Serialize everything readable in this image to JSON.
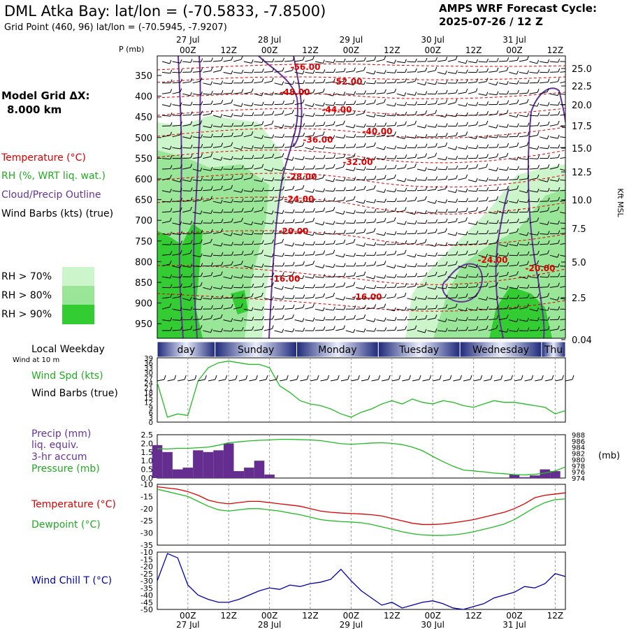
{
  "header": {
    "title": "DML Atka Bay:  lat/lon = (-70.5833, -7.8500)",
    "subtitle": "Grid Point (460, 96) lat/lon = (-70.5945, -7.9207)",
    "cycle_line1": "AMPS WRF Forecast Cycle:",
    "cycle_line2": "2025-07-26 / 12  Z"
  },
  "model_grid": {
    "label": "Model Grid ΔX:",
    "value": "8.000 km"
  },
  "legend": {
    "temperature": "Temperature (°C)",
    "rh": "RH (%, WRT liq. wat.)",
    "cloud": "Cloud/Precip Outline",
    "wind": "Wind Barbs (kts) (true)",
    "rh70": "RH > 70%",
    "rh80": "RH > 80%",
    "rh90": "RH > 90%",
    "colors": {
      "rh70": "#ccf5cc",
      "rh80": "#99e699",
      "rh90": "#33cc33",
      "temp": "#dd0000",
      "cloud": "#663399"
    }
  },
  "time_axis": {
    "top_dates": [
      "27 Jul",
      "28 Jul",
      "29 Jul",
      "30 Jul",
      "31 Jul"
    ],
    "hours": [
      "00Z",
      "12Z",
      "00Z",
      "12Z",
      "00Z",
      "12Z",
      "00Z",
      "12Z",
      "00Z",
      "12Z"
    ],
    "weekdays": [
      "day",
      "Sunday",
      "Monday",
      "Tuesday",
      "Wednesday",
      "Thu"
    ],
    "weekday_label": "Local Weekday"
  },
  "upper_axes": {
    "p_label": "P (mb)",
    "pressure_ticks": [
      "350",
      "400",
      "450",
      "500",
      "550",
      "600",
      "650",
      "700",
      "750",
      "800",
      "850",
      "900",
      "950"
    ],
    "height_ticks": [
      "25.0",
      "22.5",
      "20.0",
      "17.5",
      "15.0",
      "12.5",
      "10.0",
      "7.5",
      "5.0",
      "2.5",
      "0.04"
    ],
    "height_label": "Kft MSL",
    "isotherm_labels": [
      "-56.00",
      "-52.00",
      "-48.00",
      "-44.00",
      "-40.00",
      "-36.00",
      "-32.00",
      "-28.00",
      "-24.00",
      "-20.00",
      "-16.00",
      "-16.00",
      "-24.00",
      "-20.00"
    ]
  },
  "panels": {
    "wind": {
      "label_top": "Wind at 10 m",
      "label_spd": "Wind Spd (kts)",
      "label_barbs": "Wind Barbs (true)",
      "yticks": [
        "39",
        "36",
        "33",
        "30",
        "27",
        "24",
        "21",
        "18",
        "15",
        "12",
        "9",
        "6",
        "3",
        "0"
      ]
    },
    "precip": {
      "label1": "Precip (mm)",
      "label2": "liq. equiv.",
      "label3": "3-hr accum",
      "label4": "Pressure (mb)",
      "yticks": [
        "2.5",
        "2.0",
        "1.5",
        "1.0",
        "0.5",
        "0.0"
      ],
      "yticks_right": [
        "988",
        "986",
        "984",
        "982",
        "980",
        "978",
        "976",
        "974"
      ],
      "unit_right": "(mb)"
    },
    "temp": {
      "label_t": "Temperature (°C)",
      "label_td": "Dewpoint (°C)",
      "yticks": [
        "-10",
        "-15",
        "-20",
        "-25",
        "-30",
        "-35"
      ]
    },
    "chill": {
      "label": "Wind Chill T (°C)",
      "yticks": [
        "-10",
        "-15",
        "-20",
        "-25",
        "-30",
        "-35",
        "-40",
        "-45",
        "-50"
      ]
    }
  },
  "chart_data": [
    {
      "type": "line",
      "title": "Wind Spd (kts)",
      "x_hours": [
        0,
        3,
        6,
        9,
        12,
        15,
        18,
        21,
        24,
        27,
        30,
        33,
        36,
        39,
        42,
        45,
        48,
        51,
        54,
        57,
        60,
        63,
        66,
        69,
        72,
        75,
        78,
        81,
        84,
        87,
        90,
        93,
        96,
        99,
        102,
        105,
        108,
        111,
        114,
        117,
        120
      ],
      "series": [
        {
          "name": "Wind Spd (kts)",
          "color": "#22bb22",
          "values": [
            24,
            3,
            5,
            4,
            25,
            33,
            36,
            37,
            36,
            35,
            35,
            33,
            22,
            18,
            13,
            11,
            10,
            8,
            5,
            3,
            6,
            8,
            11,
            13,
            11,
            14,
            12,
            11,
            13,
            12,
            10,
            9,
            11,
            13,
            12,
            12,
            11,
            10,
            9,
            5,
            7
          ]
        }
      ],
      "ylim": [
        0,
        39
      ]
    },
    {
      "type": "bar",
      "title": "Precip (mm) 3-hr accum",
      "x_hours": [
        0,
        3,
        6,
        9,
        12,
        15,
        18,
        21,
        24,
        27,
        30,
        33,
        36,
        39,
        42,
        45,
        48,
        51,
        54,
        57,
        60,
        63,
        66,
        69,
        72,
        75,
        78,
        81,
        84,
        87,
        90,
        93,
        96,
        99,
        102,
        105,
        108,
        111,
        114,
        117,
        120
      ],
      "values": [
        1.9,
        1.5,
        0.5,
        0.6,
        1.6,
        1.5,
        1.6,
        2.0,
        0.4,
        0.6,
        1.0,
        0.2,
        0,
        0,
        0,
        0,
        0,
        0,
        0,
        0,
        0,
        0,
        0,
        0,
        0,
        0,
        0,
        0,
        0,
        0,
        0,
        0,
        0,
        0,
        0,
        0.2,
        0.05,
        0.15,
        0.5,
        0.4,
        0
      ],
      "ylim": [
        0,
        2.5
      ]
    },
    {
      "type": "line",
      "title": "Pressure (mb)",
      "x_hours": [
        0,
        3,
        6,
        9,
        12,
        15,
        18,
        21,
        24,
        27,
        30,
        33,
        36,
        39,
        42,
        45,
        48,
        51,
        54,
        57,
        60,
        63,
        66,
        69,
        72,
        75,
        78,
        81,
        84,
        87,
        90,
        93,
        96,
        99,
        102,
        105,
        108,
        111,
        114,
        117,
        120
      ],
      "series": [
        {
          "name": "Pressure (mb)",
          "color": "#22bb22",
          "values": [
            983.5,
            983.4,
            983.6,
            983.6,
            983.8,
            984.0,
            984.6,
            985.4,
            985.7,
            986.0,
            986.2,
            986.3,
            986.5,
            986.5,
            986.4,
            986.3,
            986.1,
            985.6,
            985.1,
            984.9,
            985.1,
            985.3,
            985.4,
            985.2,
            984.8,
            984.0,
            982.8,
            981.0,
            979.3,
            977.8,
            976.6,
            976.3,
            976.0,
            975.6,
            975.4,
            975.1,
            975.0,
            975.2,
            975.6,
            976.3,
            977.6
          ]
        }
      ],
      "ylim": [
        974,
        988
      ]
    },
    {
      "type": "line",
      "title": "Temperature / Dewpoint (°C)",
      "x_hours": [
        0,
        3,
        6,
        9,
        12,
        15,
        18,
        21,
        24,
        27,
        30,
        33,
        36,
        39,
        42,
        45,
        48,
        51,
        54,
        57,
        60,
        63,
        66,
        69,
        72,
        75,
        78,
        81,
        84,
        87,
        90,
        93,
        96,
        99,
        102,
        105,
        108,
        111,
        114,
        117,
        120
      ],
      "series": [
        {
          "name": "Temperature (°C)",
          "color": "#dd0000",
          "values": [
            -11,
            -11.5,
            -12,
            -13,
            -14.5,
            -16.5,
            -17.5,
            -18,
            -17.5,
            -17,
            -17,
            -17.5,
            -18,
            -18.5,
            -19,
            -20,
            -21,
            -21.5,
            -21.8,
            -22,
            -22.2,
            -22.5,
            -23,
            -24,
            -25,
            -26,
            -26.5,
            -26.5,
            -26.3,
            -25.8,
            -25.2,
            -24.5,
            -23.5,
            -22.5,
            -21.5,
            -20,
            -18,
            -15.5,
            -14.5,
            -14,
            -13.5
          ]
        },
        {
          "name": "Dewpoint (°C)",
          "color": "#22bb22",
          "values": [
            -12,
            -13,
            -14,
            -15,
            -17,
            -19,
            -20.5,
            -21,
            -20.5,
            -20,
            -20,
            -20.5,
            -21,
            -21.8,
            -22.5,
            -23.5,
            -24.5,
            -25,
            -25.3,
            -25.5,
            -25.8,
            -26.5,
            -27.5,
            -28.5,
            -29.5,
            -30.3,
            -30.8,
            -31,
            -31,
            -30.8,
            -30.3,
            -29.5,
            -28.5,
            -27.5,
            -26.3,
            -24.5,
            -22,
            -19.5,
            -17.5,
            -16.3,
            -16
          ]
        }
      ],
      "ylim": [
        -35,
        -10
      ]
    },
    {
      "type": "line",
      "title": "Wind Chill T (°C)",
      "x_hours": [
        0,
        3,
        6,
        9,
        12,
        15,
        18,
        21,
        24,
        27,
        30,
        33,
        36,
        39,
        42,
        45,
        48,
        51,
        54,
        57,
        60,
        63,
        66,
        69,
        72,
        75,
        78,
        81,
        84,
        87,
        90,
        93,
        96,
        99,
        102,
        105,
        108,
        111,
        114,
        117,
        120
      ],
      "series": [
        {
          "name": "Wind Chill T (°C)",
          "color": "#0000aa",
          "values": [
            -30,
            -11,
            -14,
            -33,
            -40,
            -43,
            -45,
            -45,
            -43,
            -40,
            -37,
            -35,
            -36,
            -33,
            -34,
            -32,
            -31,
            -29,
            -22,
            -30,
            -37,
            -42,
            -47,
            -45,
            -49,
            -47,
            -45,
            -44,
            -46,
            -49,
            -50,
            -48,
            -46,
            -42,
            -40,
            -38,
            -34,
            -35,
            -32,
            -25,
            -27
          ]
        }
      ],
      "ylim": [
        -50,
        -10
      ]
    }
  ]
}
